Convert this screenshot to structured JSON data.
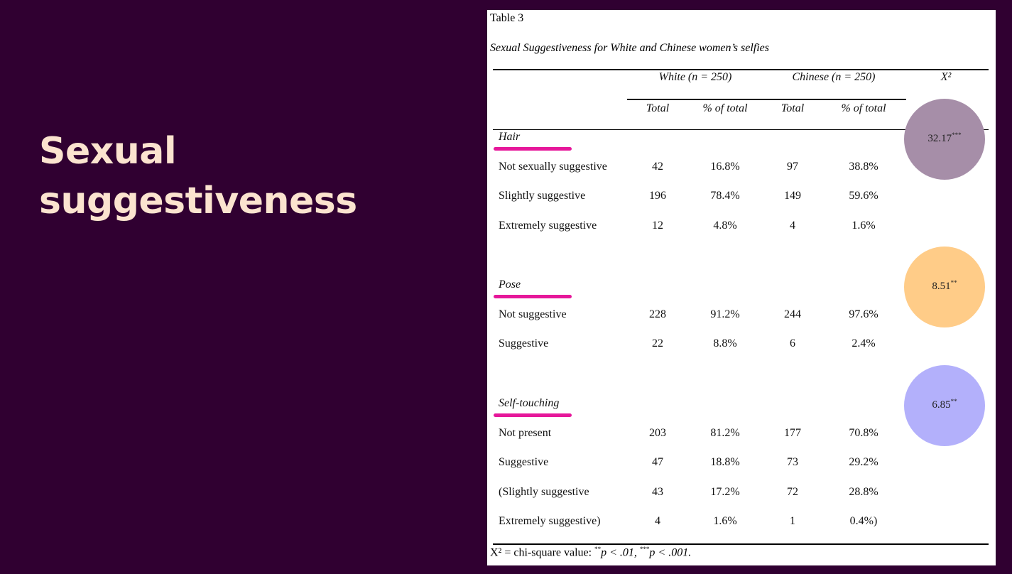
{
  "slide": {
    "title_line1": "Sexual",
    "title_line2": "suggestiveness",
    "title_color": "#fbe3cf",
    "background_color": "#300031"
  },
  "table": {
    "label": "Table 3",
    "caption": "Sexual Suggestiveness for White and Chinese women’s selfies",
    "group_headers": {
      "white": "White (n = 250)",
      "chinese": "Chinese (n = 250)",
      "chi": "X²"
    },
    "sub_headers": {
      "white_total": "Total",
      "white_pct": "% of total",
      "chinese_total": "Total",
      "chinese_pct": "% of total"
    },
    "sections": [
      {
        "name": "Hair",
        "chi_value": "32.17",
        "chi_sig": "***",
        "highlight_color": "#a68ea8",
        "rows": [
          {
            "label": "Not sexually suggestive",
            "white_total": "42",
            "white_pct": "16.8%",
            "chinese_total": "97",
            "chinese_pct": "38.8%"
          },
          {
            "label": "Slightly suggestive",
            "white_total": "196",
            "white_pct": "78.4%",
            "chinese_total": "149",
            "chinese_pct": "59.6%"
          },
          {
            "label": "Extremely suggestive",
            "white_total": "12",
            "white_pct": "4.8%",
            "chinese_total": "4",
            "chinese_pct": "1.6%"
          }
        ]
      },
      {
        "name": "Pose",
        "chi_value": "8.51",
        "chi_sig": "**",
        "highlight_color": "#ffcc88",
        "rows": [
          {
            "label": "Not suggestive",
            "white_total": "228",
            "white_pct": "91.2%",
            "chinese_total": "244",
            "chinese_pct": "97.6%"
          },
          {
            "label": "Suggestive",
            "white_total": "22",
            "white_pct": "8.8%",
            "chinese_total": "6",
            "chinese_pct": "2.4%"
          }
        ]
      },
      {
        "name": "Self-touching",
        "chi_value": "6.85",
        "chi_sig": "**",
        "highlight_color": "#b3b0fb",
        "rows": [
          {
            "label": "Not present",
            "white_total": "203",
            "white_pct": "81.2%",
            "chinese_total": "177",
            "chinese_pct": "70.8%"
          },
          {
            "label": "Suggestive",
            "white_total": "47",
            "white_pct": "18.8%",
            "chinese_total": "73",
            "chinese_pct": "29.2%"
          },
          {
            "label": "(Slightly suggestive",
            "white_total": "43",
            "white_pct": "17.2%",
            "chinese_total": "72",
            "chinese_pct": "28.8%"
          },
          {
            "label": "Extremely suggestive)",
            "white_total": "4",
            "white_pct": "1.6%",
            "chinese_total": "1",
            "chinese_pct": "0.4%)"
          }
        ]
      }
    ],
    "footnote": {
      "prefix": "X² = chi-square value: ",
      "sig2": "**",
      "p1": "p < .01, ",
      "sig3": "***",
      "p2": "p < .001."
    },
    "underline_color": "#e6179a"
  }
}
